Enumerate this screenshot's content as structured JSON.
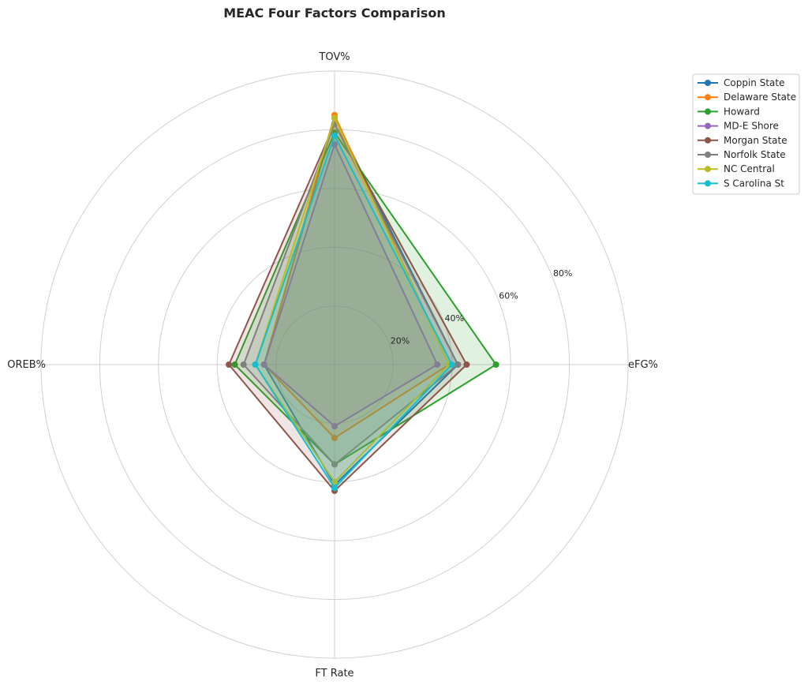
{
  "chart_data": {
    "type": "radar",
    "title": "MEAC Four Factors Comparison",
    "axes": [
      "eFG%",
      "TOV%",
      "OREB%",
      "FT Rate"
    ],
    "rlim": [
      0,
      100
    ],
    "ring_ticks": [
      20,
      40,
      60,
      80
    ],
    "ring_tick_labels": [
      "20%",
      "40%",
      "60%",
      "80%"
    ],
    "grid": true,
    "legend_position": "upper-right, outside plot",
    "series": [
      {
        "name": "Coppin State",
        "color": "#1f77b4",
        "values": [
          42,
          84,
          24,
          41
        ]
      },
      {
        "name": "Delaware State",
        "color": "#ff7f0e",
        "values": [
          39,
          85,
          24,
          25
        ]
      },
      {
        "name": "Howard",
        "color": "#2ca02c",
        "values": [
          55,
          79,
          34,
          34
        ]
      },
      {
        "name": "MD-E Shore",
        "color": "#9467bd",
        "values": [
          35,
          75,
          24,
          21
        ]
      },
      {
        "name": "Morgan State",
        "color": "#8c564b",
        "values": [
          45,
          82,
          36,
          43
        ]
      },
      {
        "name": "Norfolk State",
        "color": "#7f7f7f",
        "values": [
          42,
          82,
          31,
          34
        ]
      },
      {
        "name": "NC Central",
        "color": "#bcbd22",
        "values": [
          39,
          84,
          27,
          40
        ]
      },
      {
        "name": "S Carolina St",
        "color": "#17becf",
        "values": [
          40,
          78,
          27,
          42
        ]
      }
    ]
  }
}
